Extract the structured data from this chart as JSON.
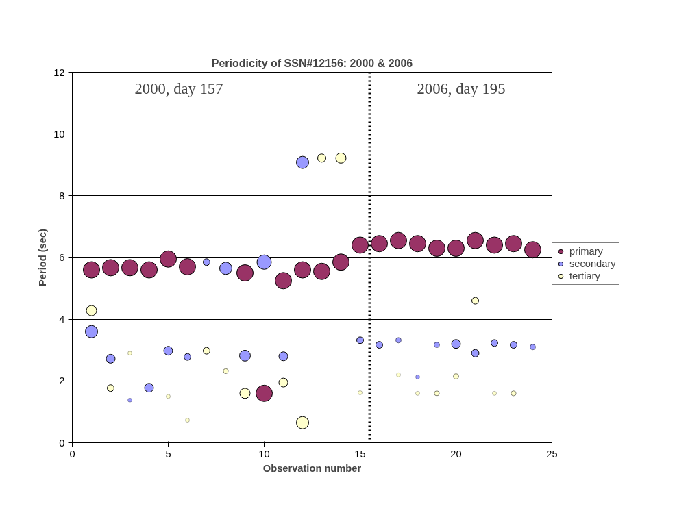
{
  "chart_data": {
    "type": "bubble",
    "title": "Periodicity of SSN#12156: 2000 & 2006",
    "xlabel": "Observation number",
    "ylabel": "Period (sec)",
    "x": [
      1,
      2,
      3,
      4,
      5,
      6,
      7,
      8,
      9,
      10,
      11,
      12,
      13,
      14,
      15,
      16,
      17,
      18,
      19,
      20,
      21,
      22,
      23,
      24
    ],
    "series": [
      {
        "name": "primary",
        "color": "#993366",
        "values": [
          5.6,
          5.67,
          5.67,
          5.6,
          5.95,
          5.7,
          null,
          null,
          5.5,
          1.6,
          5.25,
          5.6,
          5.55,
          5.85,
          6.4,
          6.45,
          6.55,
          6.45,
          6.3,
          6.3,
          6.55,
          6.4,
          6.45,
          6.25
        ],
        "sizes": [
          1,
          1,
          1,
          1,
          1,
          1,
          null,
          null,
          1,
          1,
          1,
          1,
          1,
          1,
          1,
          1,
          1,
          1,
          1,
          1,
          1,
          1,
          1,
          1
        ]
      },
      {
        "name": "secondary",
        "color": "#9999ff",
        "values": [
          3.6,
          2.72,
          1.38,
          1.78,
          2.98,
          2.78,
          5.85,
          5.65,
          2.82,
          5.85,
          2.8,
          9.08,
          null,
          null,
          3.32,
          3.17,
          3.32,
          2.13,
          3.17,
          3.2,
          2.9,
          3.23,
          3.17,
          3.1
        ],
        "sizes": [
          0.56,
          0.29,
          0.06,
          0.29,
          0.29,
          0.17,
          0.17,
          0.56,
          0.44,
          0.77,
          0.29,
          0.56,
          null,
          null,
          0.17,
          0.17,
          0.11,
          0.06,
          0.11,
          0.29,
          0.21,
          0.17,
          0.17,
          0.11
        ]
      },
      {
        "name": "tertiary",
        "color": "#ffffcc",
        "values": [
          4.28,
          1.77,
          2.9,
          null,
          1.5,
          0.73,
          2.98,
          2.32,
          1.6,
          null,
          1.95,
          0.65,
          9.22,
          9.22,
          1.62,
          null,
          2.2,
          1.6,
          1.6,
          2.15,
          4.6,
          1.6,
          1.6,
          null
        ],
        "sizes": [
          0.39,
          0.17,
          0.06,
          null,
          0.06,
          0.06,
          0.17,
          0.09,
          0.39,
          null,
          0.29,
          0.56,
          0.25,
          0.39,
          0.06,
          null,
          0.06,
          0.06,
          0.09,
          0.11,
          0.17,
          0.06,
          0.09,
          null
        ]
      }
    ],
    "xlim": [
      0,
      25
    ],
    "xticks": [
      0,
      5,
      10,
      15,
      20,
      25
    ],
    "ylim": [
      0,
      12
    ],
    "yticks": [
      0,
      2,
      4,
      6,
      8,
      10,
      12
    ],
    "grid": "y",
    "legend": "right",
    "marker": "circle",
    "ref_lines": [
      {
        "axis": "x",
        "value": 15.5,
        "label": null,
        "color": "#000000",
        "line_style": "dotted"
      }
    ],
    "annotations": [
      "2000, day 157",
      "2006, day 195"
    ]
  }
}
